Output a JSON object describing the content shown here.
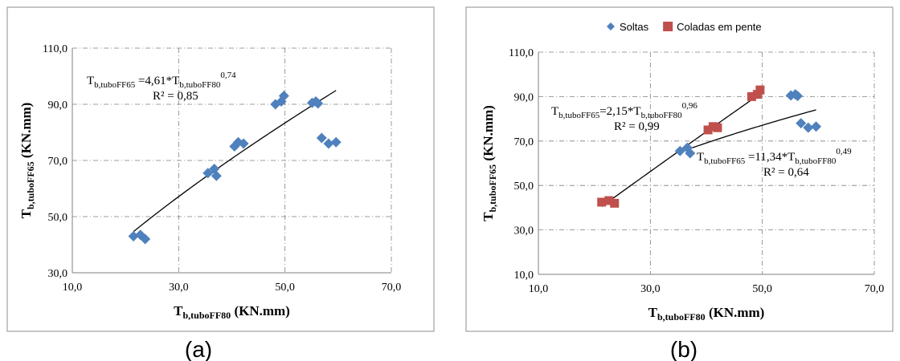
{
  "chart_data": [
    {
      "type": "scatter",
      "panel_label": "(a)",
      "xlim": [
        10,
        70
      ],
      "ylim": [
        30,
        110
      ],
      "xticks": [
        "10,0",
        "30,0",
        "50,0",
        "70,0"
      ],
      "yticks": [
        "30,0",
        "50,0",
        "70,0",
        "90,0",
        "110,0"
      ],
      "xlabel": {
        "main": "T",
        "sub": "b,tuboFF80",
        "unit": " (KN.mm)"
      },
      "ylabel": {
        "main": "T",
        "sub": "b,tuboFF65",
        "unit": " (KN.mm)"
      },
      "grid": true,
      "legend": null,
      "series": [
        {
          "marker": "diamond",
          "color": "#4f81bd",
          "points": [
            [
              21.5,
              43
            ],
            [
              22.8,
              43.5
            ],
            [
              23.7,
              42
            ],
            [
              35.5,
              65.5
            ],
            [
              36.7,
              67
            ],
            [
              37.1,
              64.5
            ],
            [
              40.5,
              75
            ],
            [
              41.2,
              76.5
            ],
            [
              42.2,
              76
            ],
            [
              48.2,
              90
            ],
            [
              49.3,
              91
            ],
            [
              49.8,
              93
            ],
            [
              55.1,
              90.5
            ],
            [
              55.8,
              91
            ],
            [
              56.2,
              90.3
            ],
            [
              56.9,
              78
            ],
            [
              58.2,
              76
            ],
            [
              59.6,
              76.5
            ]
          ]
        }
      ],
      "trendlines": [
        {
          "a": 4.61,
          "b": 0.74,
          "x_range": [
            21.5,
            59.6
          ],
          "color": "#000000"
        }
      ],
      "annotations": [
        {
          "pre": "T",
          "sub1": "b,tuboFF65",
          "mid": " =4,61*T",
          "sub2": "b,tuboFF80",
          "sup": "0,74",
          "r2": "R² = 0,85"
        }
      ]
    },
    {
      "type": "scatter",
      "panel_label": "(b)",
      "xlim": [
        10,
        70
      ],
      "ylim": [
        10,
        110
      ],
      "xticks": [
        "10,0",
        "30,0",
        "50,0",
        "70,0"
      ],
      "yticks": [
        "10,0",
        "30,0",
        "50,0",
        "70,0",
        "90,0",
        "110,0"
      ],
      "xlabel": {
        "main": "T",
        "sub": "b,tuboFF80",
        "unit": " (KN.mm)"
      },
      "ylabel": {
        "main": "T",
        "sub": "b,tuboFF65",
        "unit": " (KN.mm)"
      },
      "grid": true,
      "legend": {
        "position": "top"
      },
      "series": [
        {
          "name": "Soltas",
          "marker": "diamond",
          "color": "#4f81bd",
          "points": [
            [
              35.3,
              65.5
            ],
            [
              36.6,
              67
            ],
            [
              37.1,
              64.5
            ],
            [
              55.1,
              90.5
            ],
            [
              55.9,
              91
            ],
            [
              56.3,
              90.3
            ],
            [
              56.9,
              78
            ],
            [
              58.2,
              76
            ],
            [
              59.6,
              76.5
            ]
          ]
        },
        {
          "name": "Coladas em pente",
          "marker": "square",
          "color": "#c0504d",
          "points": [
            [
              21.3,
              42.5
            ],
            [
              22.6,
              43.2
            ],
            [
              23.6,
              42
            ],
            [
              40.3,
              75
            ],
            [
              41.2,
              76.5
            ],
            [
              42,
              76
            ],
            [
              48.1,
              90
            ],
            [
              49.1,
              91
            ],
            [
              49.6,
              93
            ]
          ]
        }
      ],
      "trendlines": [
        {
          "a": 2.15,
          "b": 0.96,
          "x_range": [
            21.3,
            49.6
          ],
          "color": "#000000"
        },
        {
          "a": 11.34,
          "b": 0.49,
          "x_range": [
            35.3,
            59.6
          ],
          "color": "#000000"
        }
      ],
      "annotations": [
        {
          "pre": "T",
          "sub1": "b,tuboFF65",
          "mid": "=2,15*T",
          "sub2": "b,tuboFF80",
          "sup": "0,96",
          "r2": "R² = 0,99"
        },
        {
          "pre": "T",
          "sub1": "b,tuboFF65",
          "mid": " =11,34*T",
          "sub2": "b,tuboFF80",
          "sup": "0,49",
          "r2": "R² = 0,64"
        }
      ]
    }
  ]
}
